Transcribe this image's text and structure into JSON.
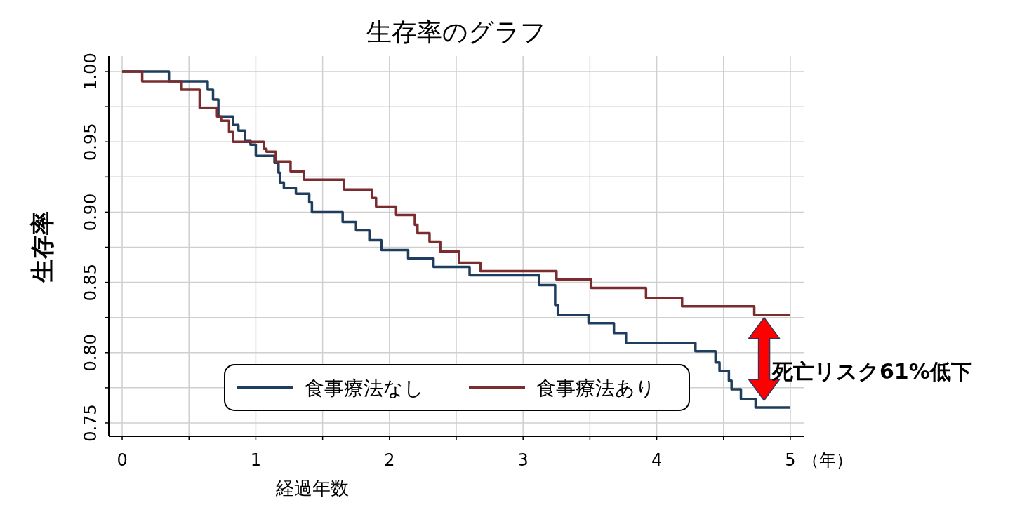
{
  "chart_data": {
    "type": "step",
    "title": "生存率のグラフ",
    "xlabel": "経過年数",
    "ylabel": "生存率",
    "xlim": [
      -0.1,
      5.1
    ],
    "ylim": [
      0.7405,
      1.011
    ],
    "xticks": [
      0,
      {
        "value": 0.5,
        "label": null
      },
      1,
      {
        "value": 1.5,
        "label": null
      },
      2,
      {
        "value": 2.5,
        "label": null
      },
      3,
      {
        "value": 3.5,
        "label": null
      },
      4,
      {
        "value": 4.5,
        "label": null
      },
      5
    ],
    "yticks": [
      {
        "value": 0.75,
        "label": "0.75"
      },
      {
        "value": 0.775,
        "label": null
      },
      {
        "value": 0.8,
        "label": "0.80"
      },
      {
        "value": 0.825,
        "label": null
      },
      {
        "value": 0.85,
        "label": "0.85"
      },
      {
        "value": 0.875,
        "label": null
      },
      {
        "value": 0.9,
        "label": "0.90"
      },
      {
        "value": 0.925,
        "label": null
      },
      {
        "value": 0.95,
        "label": "0.95"
      },
      {
        "value": 0.975,
        "label": null
      },
      {
        "value": 1,
        "label": "1.00"
      }
    ],
    "grid": true,
    "legend": "bottom",
    "marker": "none",
    "line_style": "solid",
    "annotations": [
      "（年）",
      "死亡リスク61%低下"
    ],
    "series": [
      {
        "name": "食事療法なし",
        "color": "#1f3d5c",
        "x": [
          0,
          0.35,
          0.64,
          0.68,
          0.72,
          0.83,
          0.87,
          0.92,
          0.96,
          1.0,
          1.14,
          1.17,
          1.18,
          1.21,
          1.3,
          1.4,
          1.42,
          1.65,
          1.75,
          1.85,
          1.94,
          2.14,
          2.33,
          2.6,
          3.12,
          3.24,
          3.26,
          3.49,
          3.68,
          3.77,
          4.29,
          4.44,
          4.47,
          4.54,
          4.56,
          4.63,
          4.74,
          5.0
        ],
        "values": [
          1.0,
          0.993,
          0.987,
          0.98,
          0.968,
          0.962,
          0.958,
          0.951,
          0.948,
          0.94,
          0.935,
          0.928,
          0.921,
          0.917,
          0.913,
          0.907,
          0.9,
          0.893,
          0.887,
          0.88,
          0.873,
          0.867,
          0.861,
          0.855,
          0.848,
          0.834,
          0.827,
          0.821,
          0.814,
          0.807,
          0.801,
          0.793,
          0.787,
          0.78,
          0.774,
          0.767,
          0.761,
          0.761
        ]
      },
      {
        "name": "食事療法あり",
        "color": "#7b2c2f",
        "x": [
          0,
          0.15,
          0.44,
          0.58,
          0.71,
          0.74,
          0.8,
          0.83,
          1.06,
          1.08,
          1.15,
          1.26,
          1.36,
          1.66,
          1.87,
          1.9,
          2.05,
          2.19,
          2.21,
          2.3,
          2.38,
          2.52,
          2.68,
          3.25,
          3.51,
          3.92,
          4.19,
          4.73,
          5.0
        ],
        "values": [
          1.0,
          0.993,
          0.987,
          0.974,
          0.968,
          0.965,
          0.957,
          0.95,
          0.945,
          0.943,
          0.936,
          0.929,
          0.923,
          0.916,
          0.91,
          0.904,
          0.898,
          0.891,
          0.885,
          0.879,
          0.872,
          0.864,
          0.858,
          0.852,
          0.846,
          0.839,
          0.833,
          0.827,
          0.827
        ]
      }
    ]
  }
}
